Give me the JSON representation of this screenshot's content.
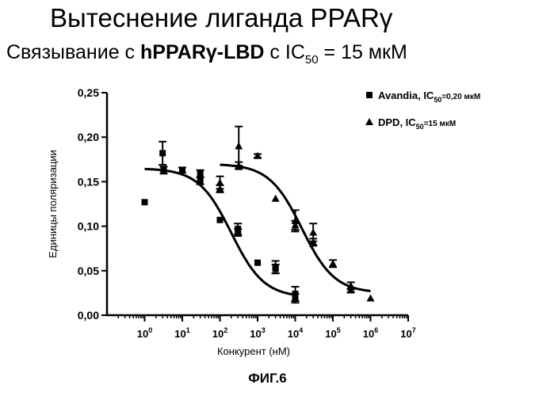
{
  "header": {
    "title": "Вытеснение лиганда PPARγ",
    "subtitle_prefix": "Связывание с ",
    "subtitle_protein": "hPPARγ-LBD",
    "subtitle_middle": " с IC",
    "subtitle_sub": "50",
    "subtitle_suffix": " = 15 мкМ"
  },
  "figure_label": "ФИГ.6",
  "chart_data": {
    "type": "scatter",
    "xscale": "log",
    "xlabel": "Конкурент (нМ)",
    "ylabel": "Единицы поляризации",
    "xlim": [
      0.1,
      10000000
    ],
    "ylim": [
      0.0,
      0.25
    ],
    "yticks": [
      "0,00",
      "0,05",
      "0,10",
      "0,15",
      "0,20",
      "0,25"
    ],
    "xticks": [
      {
        "base": "10",
        "exp": "0",
        "value": 1
      },
      {
        "base": "10",
        "exp": "1",
        "value": 10
      },
      {
        "base": "10",
        "exp": "2",
        "value": 100
      },
      {
        "base": "10",
        "exp": "3",
        "value": 1000
      },
      {
        "base": "10",
        "exp": "4",
        "value": 10000
      },
      {
        "base": "10",
        "exp": "5",
        "value": 100000
      },
      {
        "base": "10",
        "exp": "6",
        "value": 1000000
      },
      {
        "base": "10",
        "exp": "7",
        "value": 10000000
      }
    ],
    "grid": false,
    "legend_position": "top-right",
    "series": [
      {
        "name": "Avandia, IC50=0,20 мкМ",
        "legend_main": "Avandia, IC",
        "legend_sub": "50",
        "legend_tail": "=0,20 мкМ",
        "marker": "square",
        "color": "#000000",
        "points": [
          {
            "x": 1,
            "y": 0.127,
            "err": 0.0
          },
          {
            "x": 3,
            "y": 0.182,
            "err": 0.013
          },
          {
            "x": 3.2,
            "y": 0.163,
            "err": 0.004
          },
          {
            "x": 10,
            "y": 0.163,
            "err": 0.003
          },
          {
            "x": 30,
            "y": 0.159,
            "err": 0.004
          },
          {
            "x": 30,
            "y": 0.151,
            "err": 0.004
          },
          {
            "x": 100,
            "y": 0.107,
            "err": 0.0
          },
          {
            "x": 300,
            "y": 0.097,
            "err": 0.006
          },
          {
            "x": 300,
            "y": 0.093,
            "err": 0.004
          },
          {
            "x": 1000,
            "y": 0.059,
            "err": 0.0
          },
          {
            "x": 3000,
            "y": 0.054,
            "err": 0.007
          },
          {
            "x": 3000,
            "y": 0.052,
            "err": 0.005
          },
          {
            "x": 10000,
            "y": 0.024,
            "err": 0.008
          },
          {
            "x": 10000,
            "y": 0.019,
            "err": 0.005
          }
        ],
        "fit": {
          "top": 0.165,
          "bottom": 0.02,
          "ic50": 200
        }
      },
      {
        "name": "DPD, IC50=15 мкМ",
        "legend_main": "DPD, IC",
        "legend_sub": "50",
        "legend_tail": "=15 мкМ",
        "marker": "triangle",
        "color": "#000000",
        "points": [
          {
            "x": 100,
            "y": 0.149,
            "err": 0.007
          },
          {
            "x": 100,
            "y": 0.142,
            "err": 0.004
          },
          {
            "x": 316,
            "y": 0.19,
            "err": 0.022
          },
          {
            "x": 316,
            "y": 0.168,
            "err": 0.004
          },
          {
            "x": 1000,
            "y": 0.179,
            "err": 0.002
          },
          {
            "x": 3000,
            "y": 0.131,
            "err": 0.0
          },
          {
            "x": 10000,
            "y": 0.106,
            "err": 0.012
          },
          {
            "x": 10000,
            "y": 0.101,
            "err": 0.005
          },
          {
            "x": 30000,
            "y": 0.093,
            "err": 0.01
          },
          {
            "x": 30000,
            "y": 0.082,
            "err": 0.004
          },
          {
            "x": 100000,
            "y": 0.058,
            "err": 0.004
          },
          {
            "x": 300000,
            "y": 0.033,
            "err": 0.004
          },
          {
            "x": 300000,
            "y": 0.028,
            "err": 0.002
          },
          {
            "x": 1000000,
            "y": 0.019,
            "err": 0.0
          }
        ],
        "fit": {
          "top": 0.17,
          "bottom": 0.025,
          "ic50": 15000
        }
      }
    ]
  }
}
